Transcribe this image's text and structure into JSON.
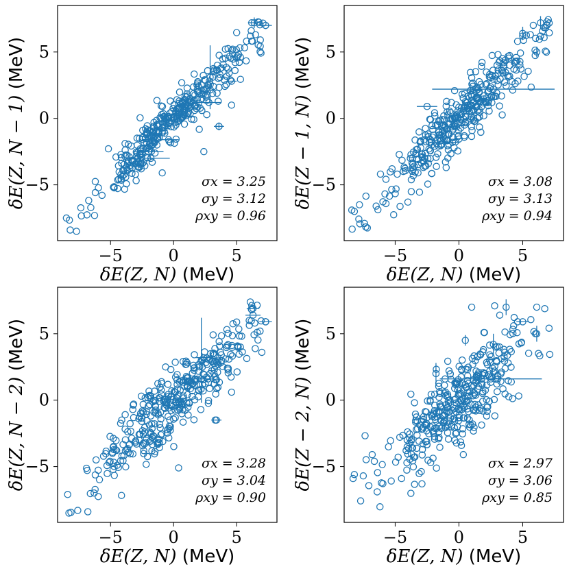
{
  "chart_data": [
    {
      "type": "scatter",
      "xlabel": "δE(Z, N) (MeV)",
      "ylabel": "δE(Z, N − 1) (MeV)",
      "xlim": [
        -9.2,
        8.2
      ],
      "ylim": [
        -9.2,
        8.5
      ],
      "xticks": [
        -5,
        0,
        5
      ],
      "yticks": [
        -5,
        0,
        5
      ],
      "stats": [
        "σx = 3.25",
        "σy = 3.12",
        "ρxy = 0.96"
      ],
      "n_points": 380,
      "seed": 11,
      "slope": 0.92,
      "noise": 0.85,
      "points": [
        {
          "x": -8.5,
          "y": -7.5
        },
        {
          "x": -8.2,
          "y": -8.4
        },
        {
          "x": -7.7,
          "y": -8.5
        },
        {
          "x": 6.2,
          "y": 7.2
        },
        {
          "x": 6.5,
          "y": 6.3
        },
        {
          "x": 7.3,
          "y": 7.0
        },
        {
          "x": 6.1,
          "y": 6.2
        },
        {
          "x": 4.6,
          "y": 1.0
        },
        {
          "x": 3.6,
          "y": -0.6
        },
        {
          "x": 2.4,
          "y": -2.5
        },
        {
          "x": -0.9,
          "y": -4.1
        },
        {
          "x": 4.5,
          "y": 2.9
        }
      ],
      "errorbars": [
        {
          "x": 2.9,
          "y": 3.1,
          "xerr": 0,
          "yerr": 2.4
        },
        {
          "x": 6.4,
          "y": 7.2,
          "xerr": 0.5,
          "yerr": 0.4
        },
        {
          "x": 7.3,
          "y": 7.0,
          "xerr": 0.5,
          "yerr": 0
        },
        {
          "x": 3.6,
          "y": -0.6,
          "xerr": 0.4,
          "yerr": 0.3
        },
        {
          "x": 4.6,
          "y": 2.8,
          "xerr": 0.4,
          "yerr": 0
        },
        {
          "x": 2.8,
          "y": 1.2,
          "xerr": 1.0,
          "yerr": 0
        },
        {
          "x": -2.0,
          "y": -2.5,
          "xerr": 1.2,
          "yerr": 0
        },
        {
          "x": -1.8,
          "y": -3.0,
          "xerr": 1.5,
          "yerr": 0
        },
        {
          "x": -0.4,
          "y": -1.6,
          "xerr": 0.8,
          "yerr": 0
        }
      ]
    },
    {
      "type": "scatter",
      "xlabel": "δE(Z, N) (MeV)",
      "ylabel": "δE(Z − 1, N) (MeV)",
      "xlim": [
        -9.0,
        8.2
      ],
      "ylim": [
        -9.2,
        8.5
      ],
      "xticks": [
        -5,
        0,
        5
      ],
      "yticks": [
        -5,
        0,
        5
      ],
      "stats": [
        "σx = 3.08",
        "σy = 3.13",
        "ρxy = 0.94"
      ],
      "n_points": 380,
      "seed": 23,
      "slope": 0.93,
      "noise": 1.05,
      "points": [
        {
          "x": -8.4,
          "y": -6.9
        },
        {
          "x": -8.2,
          "y": -7.0
        },
        {
          "x": -7.8,
          "y": -6.5
        },
        {
          "x": 5.6,
          "y": 6.3
        },
        {
          "x": 6.4,
          "y": 6.2
        },
        {
          "x": 6.9,
          "y": 7.0
        },
        {
          "x": 5.0,
          "y": 6.2
        },
        {
          "x": 4.6,
          "y": 5.8
        },
        {
          "x": -4.0,
          "y": -6.3
        },
        {
          "x": -1.0,
          "y": -3.7
        }
      ],
      "errorbars": [
        {
          "x": 2.7,
          "y": 2.2,
          "xerr": 4.8,
          "yerr": 0
        },
        {
          "x": -2.5,
          "y": 0.9,
          "xerr": 0.8,
          "yerr": 0
        },
        {
          "x": 5.0,
          "y": 6.4,
          "xerr": 0,
          "yerr": 0.5
        },
        {
          "x": 6.4,
          "y": 7.2,
          "xerr": 0,
          "yerr": 0.5
        },
        {
          "x": 6.1,
          "y": 5.0,
          "xerr": 0,
          "yerr": 0.4
        },
        {
          "x": -0.5,
          "y": -1.8,
          "xerr": 0.6,
          "yerr": 0
        },
        {
          "x": 0.9,
          "y": 2.1,
          "xerr": 0.5,
          "yerr": 0.3
        }
      ]
    },
    {
      "type": "scatter",
      "xlabel": "δE(Z, N) (MeV)",
      "ylabel": "δE(Z, N − 2) (MeV)",
      "xlim": [
        -9.2,
        8.2
      ],
      "ylim": [
        -9.2,
        8.5
      ],
      "xticks": [
        -5,
        0,
        5
      ],
      "yticks": [
        -5,
        0,
        5
      ],
      "stats": [
        "σx = 3.28",
        "σy = 3.04",
        "ρxy = 0.90"
      ],
      "n_points": 380,
      "seed": 37,
      "slope": 0.85,
      "noise": 1.25,
      "points": [
        {
          "x": -8.4,
          "y": -7.1
        },
        {
          "x": -8.3,
          "y": -8.5
        },
        {
          "x": -7.6,
          "y": -8.3
        },
        {
          "x": -6.8,
          "y": -8.4
        },
        {
          "x": 6.2,
          "y": 6.8
        },
        {
          "x": 7.3,
          "y": 5.9
        },
        {
          "x": 6.0,
          "y": 6.0
        },
        {
          "x": 5.3,
          "y": 4.0
        },
        {
          "x": 7.0,
          "y": 3.6
        },
        {
          "x": 4.6,
          "y": 0.6
        },
        {
          "x": 3.3,
          "y": -1.5
        },
        {
          "x": 0.4,
          "y": -5.1
        }
      ],
      "errorbars": [
        {
          "x": 2.2,
          "y": 3.0,
          "xerr": 0,
          "yerr": 3.2
        },
        {
          "x": 6.3,
          "y": 6.9,
          "xerr": 0.5,
          "yerr": 0
        },
        {
          "x": 6.3,
          "y": 6.4,
          "xerr": 0.6,
          "yerr": 0
        },
        {
          "x": 7.3,
          "y": 5.9,
          "xerr": 0.5,
          "yerr": 0
        },
        {
          "x": 3.4,
          "y": -1.5,
          "xerr": 0.4,
          "yerr": 0
        },
        {
          "x": 2.2,
          "y": 1.6,
          "xerr": 0.8,
          "yerr": 0
        },
        {
          "x": -1.7,
          "y": -2.8,
          "xerr": 1.0,
          "yerr": 0
        },
        {
          "x": 2.4,
          "y": 3.2,
          "xerr": 0.6,
          "yerr": 0
        }
      ]
    },
    {
      "type": "scatter",
      "xlabel": "δE(Z, N) (MeV)",
      "ylabel": "δE(Z − 2, N) (MeV)",
      "xlim": [
        -9.0,
        8.2
      ],
      "ylim": [
        -9.2,
        8.5
      ],
      "xticks": [
        -5,
        0,
        5
      ],
      "yticks": [
        -5,
        0,
        5
      ],
      "stats": [
        "σx = 2.97",
        "σy = 3.06",
        "ρxy = 0.85"
      ],
      "n_points": 380,
      "seed": 53,
      "slope": 0.88,
      "noise": 1.55,
      "points": [
        {
          "x": -8.3,
          "y": -5.9
        },
        {
          "x": -8.2,
          "y": -5.6
        },
        {
          "x": -7.5,
          "y": -5.7
        },
        {
          "x": -6.8,
          "y": -4.1
        },
        {
          "x": 1.0,
          "y": 7.0
        },
        {
          "x": 2.8,
          "y": 7.1
        },
        {
          "x": 3.2,
          "y": 6.4
        },
        {
          "x": 4.6,
          "y": 5.9
        },
        {
          "x": 6.0,
          "y": 5.0
        },
        {
          "x": 6.1,
          "y": 7.0
        },
        {
          "x": -2.9,
          "y": -6.3
        },
        {
          "x": -4.5,
          "y": -5.9
        }
      ],
      "errorbars": [
        {
          "x": 2.5,
          "y": 1.6,
          "xerr": 4.0,
          "yerr": 0
        },
        {
          "x": -1.8,
          "y": 2.0,
          "xerr": 0,
          "yerr": 0.8
        },
        {
          "x": 3.7,
          "y": 7.0,
          "xerr": 0,
          "yerr": 0.6
        },
        {
          "x": 5.0,
          "y": 5.9,
          "xerr": 0.5,
          "yerr": 0
        },
        {
          "x": 6.1,
          "y": 5.0,
          "xerr": 0,
          "yerr": 0.6
        },
        {
          "x": 0.5,
          "y": 4.5,
          "xerr": 0,
          "yerr": 0.4
        },
        {
          "x": 2.7,
          "y": 4.2,
          "xerr": 0,
          "yerr": 0.8
        }
      ]
    }
  ]
}
